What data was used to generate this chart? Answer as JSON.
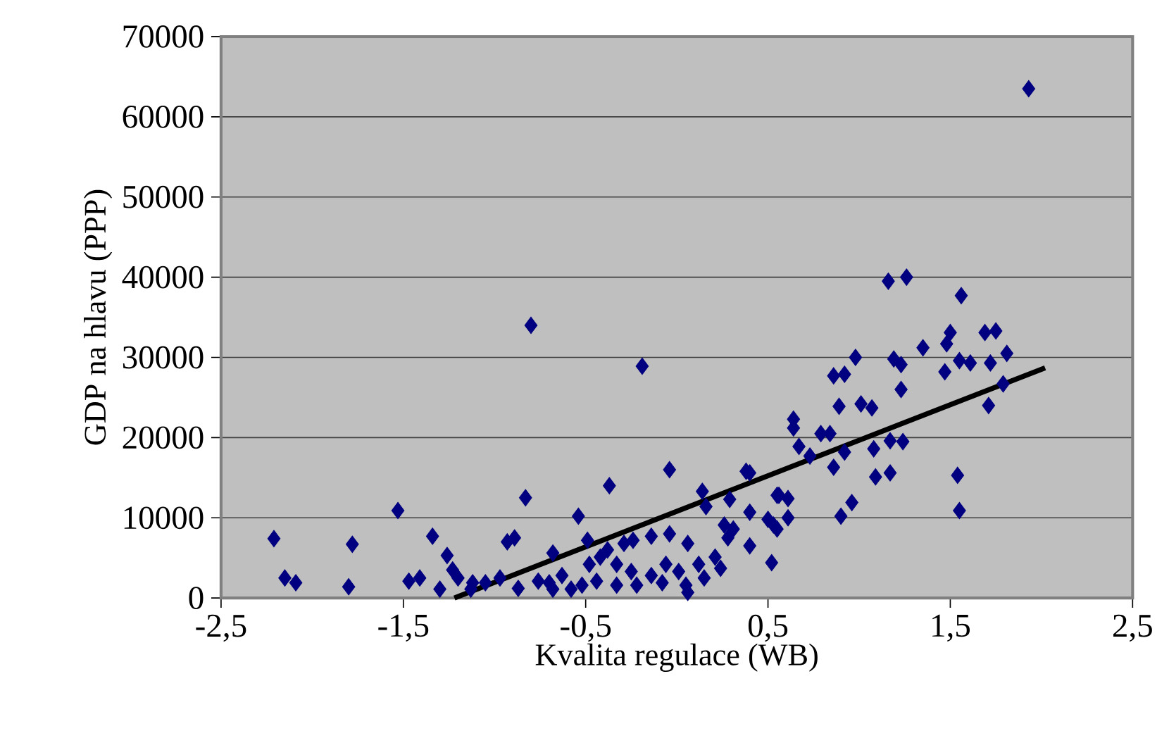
{
  "chart_data": {
    "type": "scatter",
    "xlabel": "Kvalita regulace (WB)",
    "ylabel": "GDP na hlavu (PPP)",
    "xlim": [
      -2.5,
      2.5
    ],
    "ylim": [
      0,
      70000
    ],
    "xticks": [
      {
        "value": -2.5,
        "label": "-2,5"
      },
      {
        "value": -1.5,
        "label": "-1,5"
      },
      {
        "value": -0.5,
        "label": "-0,5"
      },
      {
        "value": 0.5,
        "label": "0,5"
      },
      {
        "value": 1.5,
        "label": "1,5"
      },
      {
        "value": 2.5,
        "label": "2,5"
      }
    ],
    "yticks": [
      0,
      10000,
      20000,
      30000,
      40000,
      50000,
      60000,
      70000
    ],
    "grid": "y",
    "series": [
      {
        "color": "#000080",
        "marker": "diamond",
        "x": [
          -2.21,
          -2.15,
          -2.09,
          -1.8,
          -1.78,
          -1.53,
          -1.47,
          -1.41,
          -1.34,
          -1.3,
          -1.26,
          -1.23,
          -1.2,
          -1.13,
          -1.12,
          -1.05,
          -0.97,
          -0.93,
          -0.89,
          -0.87,
          -0.83,
          -0.8,
          -0.76,
          -0.7,
          -0.37,
          -0.54,
          -0.04,
          0.38,
          0.55,
          0.61,
          0.61,
          0.53,
          0.4,
          0.29,
          0.14,
          0.16,
          0.4,
          0.52,
          0.26,
          -0.04,
          -0.14,
          -0.24,
          -0.49,
          -0.68,
          1.16,
          1.26,
          1.56,
          1.5,
          1.48,
          1.69,
          1.75,
          1.35,
          1.81,
          1.19,
          1.23,
          0.98,
          1.55,
          1.61,
          1.72,
          1.47,
          0.86,
          0.92,
          1.23,
          1.79,
          1.71,
          0.89,
          1.01,
          1.07,
          0.64,
          0.64,
          0.79,
          0.84,
          0.67,
          0.73,
          0.92,
          1.08,
          1.17,
          1.24,
          0.86,
          1.09,
          1.17,
          1.54,
          1.55,
          0.96,
          0.9,
          0.56,
          0.5,
          0.55,
          0.4,
          -0.19,
          1.93,
          0.06,
          0.12,
          0.05,
          0.15,
          0.21,
          0.24,
          0.28,
          0.31,
          0.01,
          -0.06,
          -0.14,
          -0.25,
          -0.33,
          -0.38,
          -0.44,
          -0.52,
          -0.48,
          -0.58,
          -0.63,
          -0.68,
          -0.33,
          -0.22,
          -0.08,
          0.06,
          -0.42,
          -0.29
        ],
        "values": [
          7400,
          2500,
          1900,
          1400,
          6700,
          10900,
          2100,
          2500,
          7700,
          1100,
          5300,
          3500,
          2500,
          1100,
          1900,
          1900,
          2500,
          7000,
          7500,
          1200,
          12500,
          34000,
          2100,
          1900,
          14000,
          10200,
          16000,
          15800,
          12800,
          12400,
          10000,
          9100,
          10700,
          12300,
          13300,
          11400,
          6500,
          4400,
          9100,
          8000,
          7700,
          7200,
          7200,
          5600,
          39500,
          40000,
          37700,
          33100,
          31700,
          33100,
          33300,
          31200,
          30500,
          29800,
          29100,
          30000,
          29600,
          29300,
          29300,
          28200,
          27700,
          27900,
          26000,
          26700,
          24000,
          23900,
          24200,
          23700,
          22300,
          21200,
          20500,
          20500,
          18900,
          17700,
          18200,
          18600,
          19600,
          19500,
          16300,
          15100,
          15600,
          15300,
          10900,
          11900,
          10200,
          12800,
          9800,
          8600,
          15600,
          28900,
          63500,
          6800,
          4200,
          1600,
          2500,
          5100,
          3700,
          7500,
          8600,
          3300,
          4200,
          2800,
          3300,
          4200,
          6000,
          2100,
          1600,
          4200,
          1100,
          2800,
          1100,
          1600,
          1600,
          1900,
          700,
          5100,
          6800
        ]
      },
      {
        "type": "line",
        "color": "#000000",
        "line_style": "solid",
        "marker": "none",
        "x": [
          -1.22,
          2.02
        ],
        "values": [
          0,
          28700
        ]
      }
    ]
  }
}
